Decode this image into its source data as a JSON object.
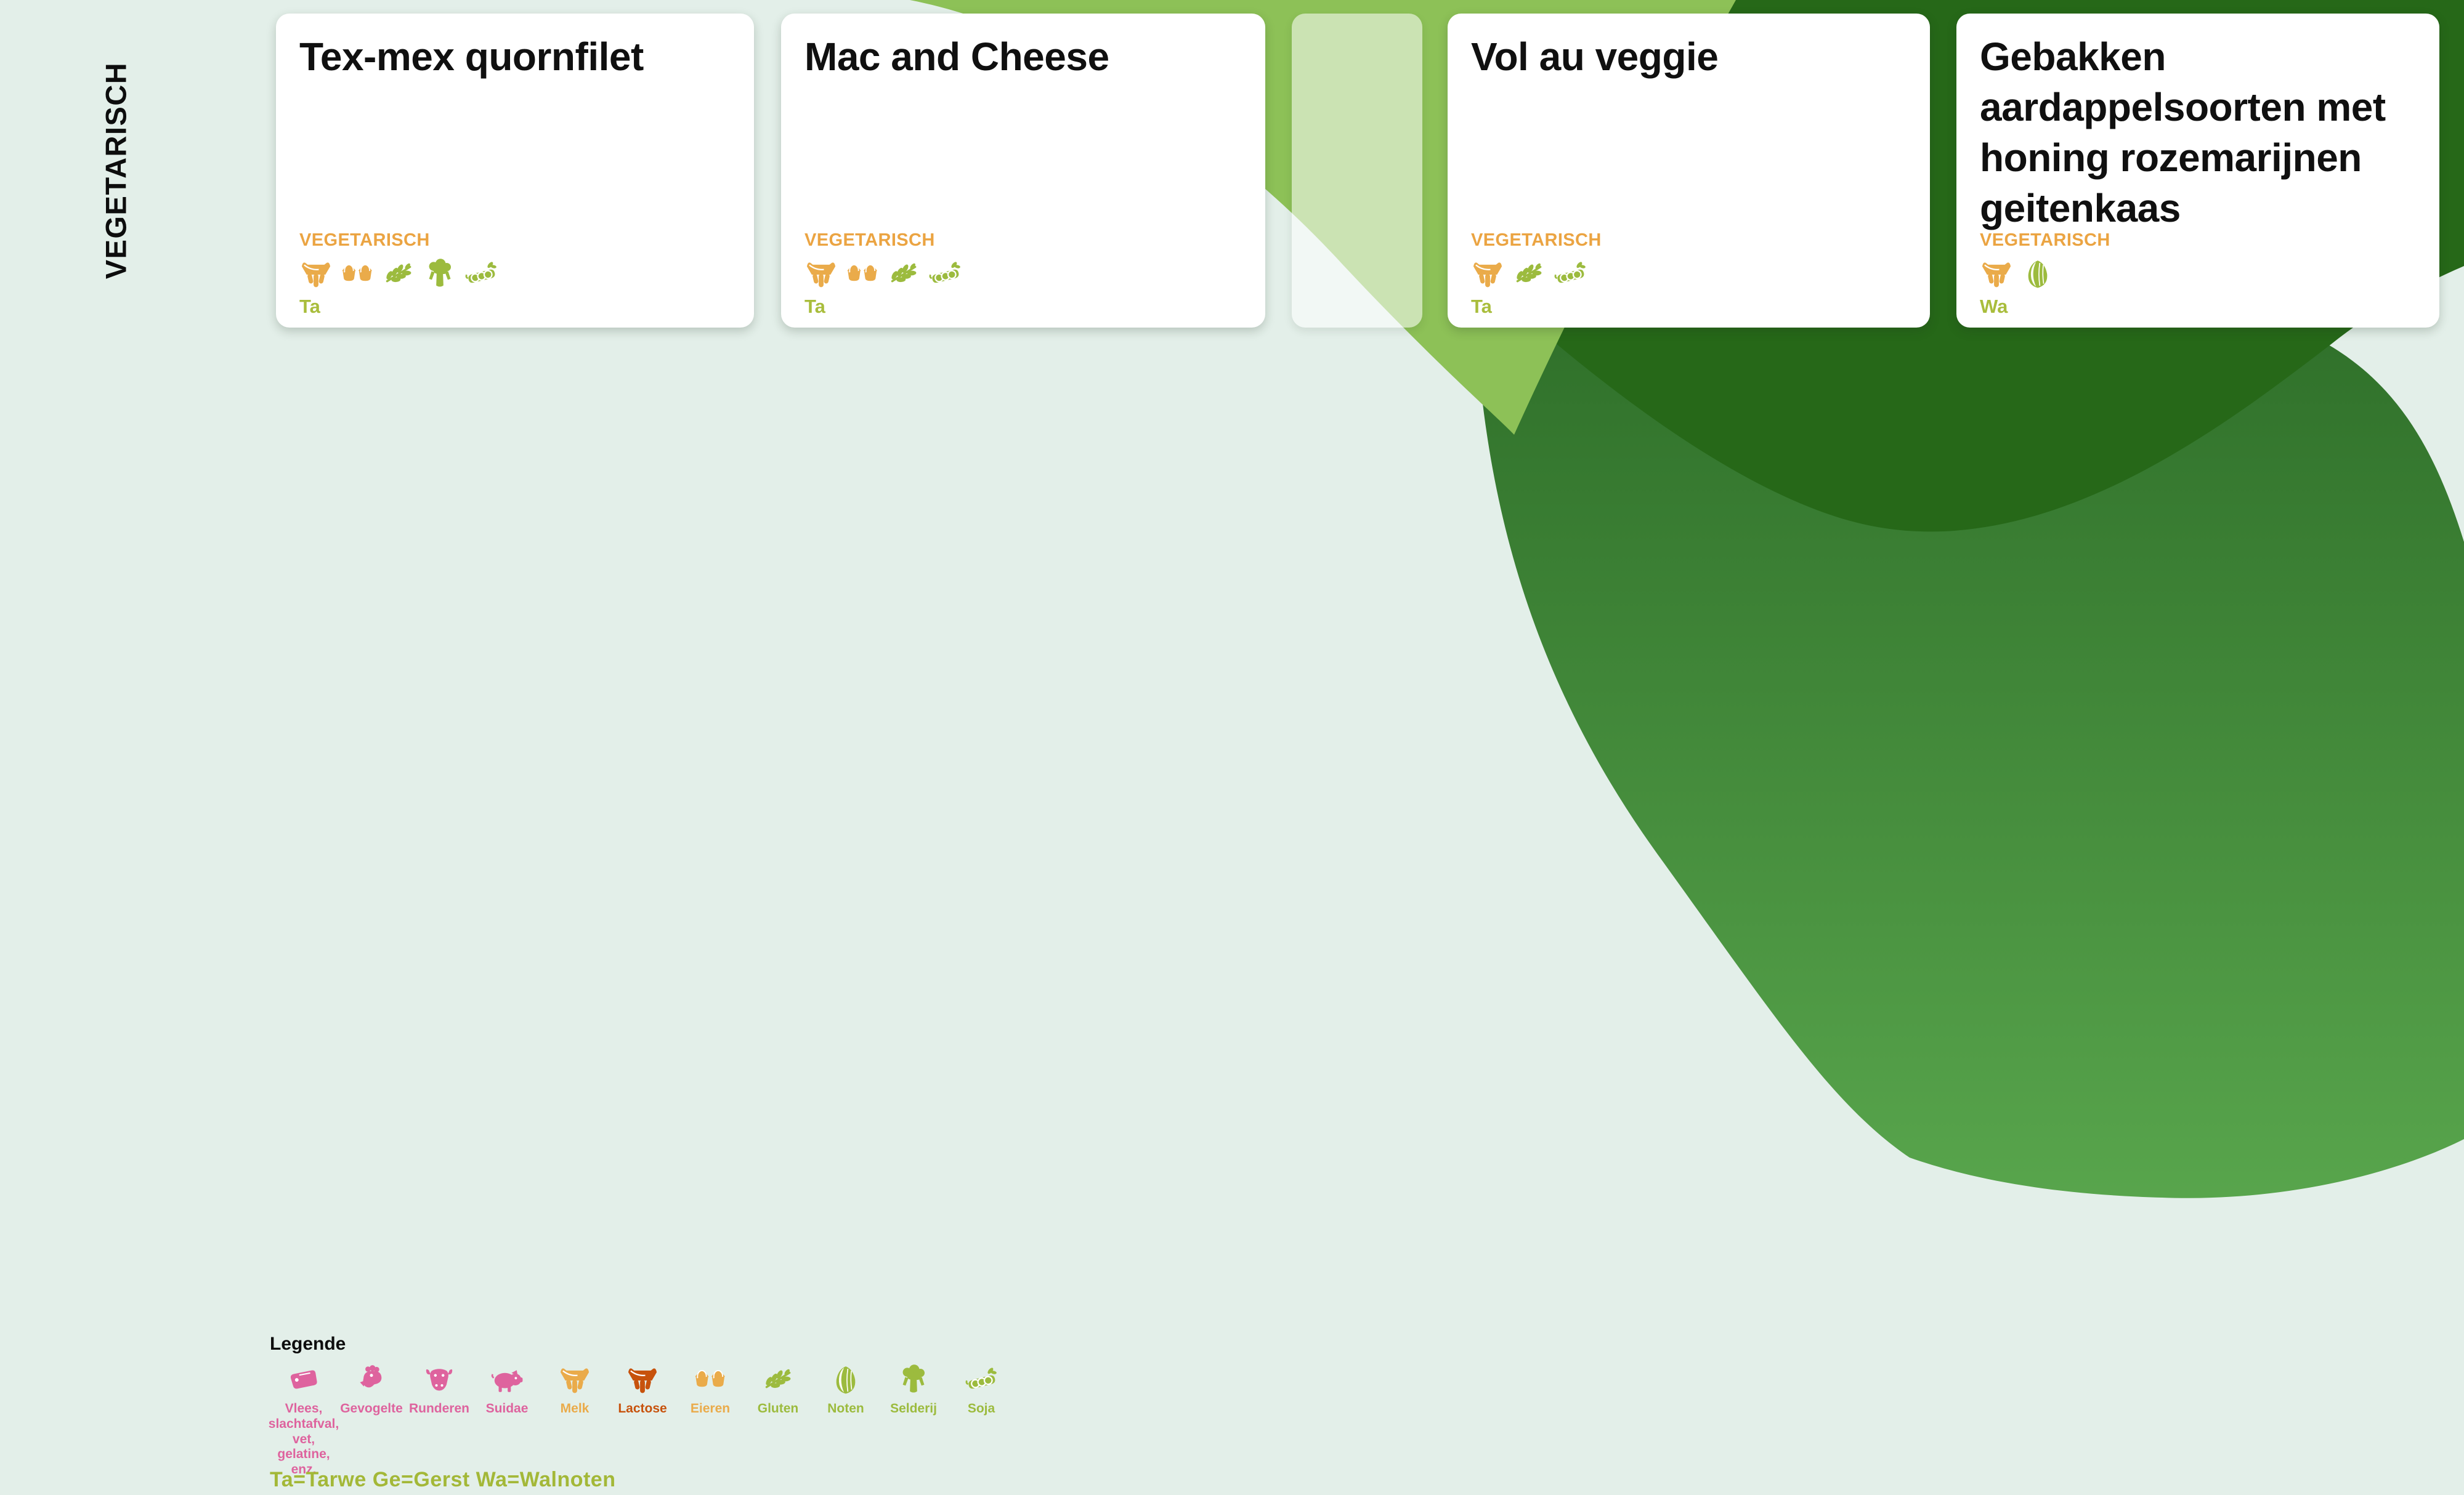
{
  "category_label": "VEGETARISCH",
  "colors": {
    "background_mint": "#e3efe9",
    "leaf_light_green": "#8dc157",
    "leaf_dark_green": "#266818",
    "gradient_top": "#2d6d28",
    "gradient_bottom": "#58a54c",
    "diet_label_orange": "#eba442",
    "icon_orange": "#eaab4a",
    "icon_burnt_orange": "#c7520c",
    "icon_green": "#9cbb3e",
    "icon_pink": "#de639e",
    "code_green": "#a9bd3c",
    "codes_line_green": "#a3b838"
  },
  "cards": [
    {
      "title": "Tex-mex quornfilet",
      "diet_label": "VEGETARISCH",
      "allergen_icons": [
        "milk",
        "eggs",
        "gluten",
        "celery",
        "soy"
      ],
      "allergen_code": "Ta",
      "placeholder": false
    },
    {
      "title": "Mac and Cheese",
      "diet_label": "VEGETARISCH",
      "allergen_icons": [
        "milk",
        "eggs",
        "gluten",
        "soy"
      ],
      "allergen_code": "Ta",
      "placeholder": false
    },
    {
      "title": "",
      "diet_label": "",
      "allergen_icons": [],
      "allergen_code": "",
      "placeholder": true
    },
    {
      "title": "Vol au veggie",
      "diet_label": "VEGETARISCH",
      "allergen_icons": [
        "milk",
        "gluten",
        "soy"
      ],
      "allergen_code": "Ta",
      "placeholder": false
    },
    {
      "title": "Gebakken aardappelsoorten met honing rozemarijnen geitenkaas",
      "diet_label": "VEGETARISCH",
      "allergen_icons": [
        "milk",
        "walnut"
      ],
      "allergen_code": "Wa",
      "placeholder": false
    }
  ],
  "legend": {
    "title": "Legende",
    "items": [
      {
        "icon": "meat",
        "label": "Vlees,\nslachtafval,\nvet,\ngelatine,\nenz.",
        "color": "#de639e"
      },
      {
        "icon": "poultry",
        "label": "Gevogelte",
        "color": "#de639e"
      },
      {
        "icon": "beef",
        "label": "Runderen",
        "color": "#de639e"
      },
      {
        "icon": "pork",
        "label": "Suidae",
        "color": "#de639e"
      },
      {
        "icon": "milk",
        "label": "Melk",
        "color": "#eaab4a"
      },
      {
        "icon": "lactose",
        "label": "Lactose",
        "color": "#c7520c"
      },
      {
        "icon": "eggs",
        "label": "Eieren",
        "color": "#eaab4a"
      },
      {
        "icon": "gluten",
        "label": "Gluten",
        "color": "#9cbb3e"
      },
      {
        "icon": "walnut",
        "label": "Noten",
        "color": "#9cbb3e"
      },
      {
        "icon": "celery",
        "label": "Selderij",
        "color": "#9cbb3e"
      },
      {
        "icon": "soy",
        "label": "Soja",
        "color": "#9cbb3e"
      }
    ],
    "codes_line": "Ta=Tarwe  Ge=Gerst  Wa=Walnoten"
  }
}
